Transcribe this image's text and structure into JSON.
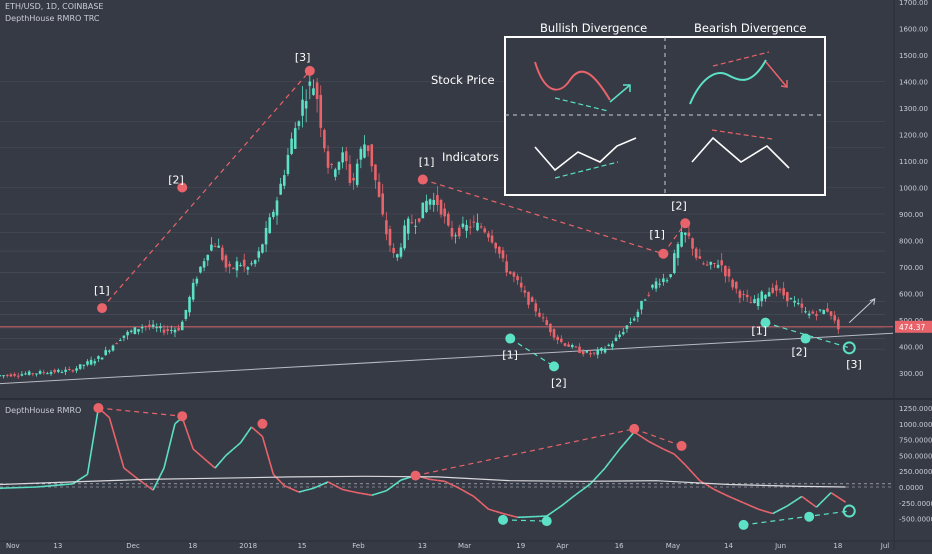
{
  "header": {
    "symbol_line": "ETH/USD, 1D, COINBASE",
    "indicator_line": "DepthHouse RMRO TRC",
    "lower_pane_title": "DepthHouse RMRO"
  },
  "colors": {
    "background": "#363a45",
    "bull": "#5ce0c6",
    "bear": "#e8636a",
    "grid": "#464b57",
    "text": "#c9ccd6",
    "price_line": "#e8636a",
    "white": "#ffffff"
  },
  "chart_data": [
    {
      "type": "candlestick",
      "title": "ETH/USD, 1D, COINBASE",
      "y_axis_ticks": [
        "1700.00",
        "1600.00",
        "1500.00",
        "1400.00",
        "1300.00",
        "1200.00",
        "1100.00",
        "1000.00",
        "900.00",
        "800.00",
        "700.00",
        "600.00",
        "500.00",
        "400.00",
        "300.00"
      ],
      "ylim": [
        250,
        1700
      ],
      "x_axis_ticks": [
        "Nov",
        "13",
        "Dec",
        "18",
        "2018",
        "15",
        "Feb",
        "13",
        "Mar",
        "19",
        "Apr",
        "16",
        "May",
        "14",
        "Jun",
        "18",
        "Jul"
      ],
      "last_price_label": "474.37",
      "last_price": 474.37,
      "price_path": [
        [
          0,
          290
        ],
        [
          10,
          300
        ],
        [
          20,
          310
        ],
        [
          28,
          360
        ],
        [
          34,
          440
        ],
        [
          40,
          480
        ],
        [
          46,
          460
        ],
        [
          50,
          470
        ],
        [
          54,
          650
        ],
        [
          58,
          780
        ],
        [
          60,
          790
        ],
        [
          63,
          680
        ],
        [
          66,
          720
        ],
        [
          68,
          690
        ],
        [
          71,
          730
        ],
        [
          74,
          850
        ],
        [
          77,
          980
        ],
        [
          80,
          1150
        ],
        [
          83,
          1300
        ],
        [
          85,
          1380
        ],
        [
          87,
          1390
        ],
        [
          89,
          1200
        ],
        [
          91,
          1050
        ],
        [
          93,
          1100
        ],
        [
          95,
          1120
        ],
        [
          97,
          1000
        ],
        [
          99,
          1120
        ],
        [
          101,
          1180
        ],
        [
          103,
          1060
        ],
        [
          106,
          850
        ],
        [
          109,
          720
        ],
        [
          112,
          860
        ],
        [
          115,
          880
        ],
        [
          118,
          960
        ],
        [
          121,
          940
        ],
        [
          124,
          820
        ],
        [
          127,
          840
        ],
        [
          130,
          860
        ],
        [
          133,
          850
        ],
        [
          136,
          800
        ],
        [
          139,
          700
        ],
        [
          142,
          650
        ],
        [
          145,
          580
        ],
        [
          148,
          530
        ],
        [
          151,
          470
        ],
        [
          154,
          420
        ],
        [
          157,
          400
        ],
        [
          160,
          380
        ],
        [
          163,
          370
        ],
        [
          166,
          390
        ],
        [
          169,
          420
        ],
        [
          172,
          470
        ],
        [
          175,
          520
        ],
        [
          178,
          600
        ],
        [
          181,
          650
        ],
        [
          184,
          660
        ],
        [
          186,
          760
        ],
        [
          188,
          830
        ],
        [
          190,
          800
        ],
        [
          192,
          720
        ],
        [
          195,
          700
        ],
        [
          198,
          720
        ],
        [
          201,
          640
        ],
        [
          204,
          590
        ],
        [
          207,
          560
        ],
        [
          210,
          600
        ],
        [
          213,
          620
        ],
        [
          216,
          590
        ],
        [
          219,
          560
        ],
        [
          222,
          520
        ],
        [
          225,
          530
        ],
        [
          228,
          540
        ],
        [
          230,
          474
        ]
      ],
      "annotations": [
        {
          "label": "[1]",
          "type": "high",
          "day": 28,
          "price": 545
        },
        {
          "label": "[2]",
          "type": "high",
          "day": 50,
          "price": 1000
        },
        {
          "label": "[3]",
          "type": "high",
          "day": 85,
          "price": 1440
        },
        {
          "label": "[1]",
          "type": "high",
          "day": 116,
          "price": 1030
        },
        {
          "label": "[1]",
          "type": "high",
          "day": 182,
          "price": 750
        },
        {
          "label": "[2]",
          "type": "high",
          "day": 188,
          "price": 865
        },
        {
          "label": "[1]",
          "type": "low",
          "day": 140,
          "price": 430
        },
        {
          "label": "[2]",
          "type": "low",
          "day": 152,
          "price": 325
        },
        {
          "label": "[1]",
          "type": "low",
          "day": 210,
          "price": 490
        },
        {
          "label": "[2]",
          "type": "low",
          "day": 221,
          "price": 430
        },
        {
          "label": "[3]",
          "type": "low",
          "day": 233,
          "price": 395
        }
      ],
      "inset": {
        "columns": [
          "Bullish Divergence",
          "Bearish Divergence"
        ],
        "rows": [
          "Stock Price",
          "Indicators"
        ]
      }
    },
    {
      "type": "line",
      "title": "DepthHouse RMRO",
      "y_axis_ticks": [
        "1250.0000",
        "1000.0000",
        "750.0000",
        "500.0000",
        "250.0000",
        "0.0000",
        "-250.0000",
        "-500.0000"
      ],
      "ylim": [
        -650,
        1300
      ],
      "series": [
        {
          "values_path": [
            [
              0,
              -20
            ],
            [
              10,
              0
            ],
            [
              20,
              50
            ],
            [
              24,
              200
            ],
            [
              27,
              1250
            ],
            [
              30,
              1100
            ],
            [
              34,
              300
            ],
            [
              38,
              120
            ],
            [
              42,
              -50
            ],
            [
              45,
              300
            ],
            [
              48,
              1000
            ],
            [
              50,
              1100
            ],
            [
              53,
              600
            ],
            [
              56,
              450
            ],
            [
              59,
              300
            ],
            [
              62,
              500
            ],
            [
              66,
              700
            ],
            [
              69,
              950
            ],
            [
              72,
              800
            ],
            [
              75,
              200
            ],
            [
              78,
              20
            ],
            [
              82,
              -80
            ],
            [
              86,
              -20
            ],
            [
              90,
              80
            ],
            [
              94,
              -40
            ],
            [
              98,
              -90
            ],
            [
              102,
              -130
            ],
            [
              106,
              -60
            ],
            [
              110,
              110
            ],
            [
              114,
              180
            ],
            [
              118,
              120
            ],
            [
              122,
              90
            ],
            [
              126,
              -20
            ],
            [
              130,
              -150
            ],
            [
              134,
              -350
            ],
            [
              138,
              -420
            ],
            [
              142,
              -480
            ],
            [
              146,
              -470
            ],
            [
              150,
              -460
            ],
            [
              154,
              -300
            ],
            [
              158,
              -120
            ],
            [
              162,
              50
            ],
            [
              166,
              300
            ],
            [
              170,
              600
            ],
            [
              174,
              870
            ],
            [
              178,
              720
            ],
            [
              182,
              600
            ],
            [
              185,
              520
            ],
            [
              188,
              350
            ],
            [
              192,
              100
            ],
            [
              196,
              -40
            ],
            [
              200,
              -150
            ],
            [
              204,
              -250
            ],
            [
              208,
              -350
            ],
            [
              212,
              -420
            ],
            [
              216,
              -300
            ],
            [
              220,
              -150
            ],
            [
              224,
              -320
            ],
            [
              228,
              -90
            ],
            [
              232,
              -240
            ]
          ]
        },
        {
          "values_path": [
            [
              0,
              40
            ],
            [
              20,
              80
            ],
            [
              40,
              120
            ],
            [
              60,
              140
            ],
            [
              80,
              160
            ],
            [
              100,
              170
            ],
            [
              120,
              160
            ],
            [
              140,
              100
            ],
            [
              160,
              90
            ],
            [
              180,
              100
            ],
            [
              200,
              40
            ],
            [
              220,
              10
            ],
            [
              232,
              0
            ]
          ]
        }
      ],
      "annotations": [
        {
          "type": "high",
          "day": 27,
          "value": 1250
        },
        {
          "type": "high",
          "day": 50,
          "value": 1120
        },
        {
          "type": "high",
          "day": 72,
          "value": 1000
        },
        {
          "type": "high",
          "day": 114,
          "value": 180
        },
        {
          "type": "high",
          "day": 174,
          "value": 920
        },
        {
          "type": "high",
          "day": 187,
          "value": 650
        },
        {
          "type": "low",
          "day": 138,
          "value": -520
        },
        {
          "type": "low",
          "day": 150,
          "value": -540
        },
        {
          "type": "low",
          "day": 204,
          "value": -600
        },
        {
          "type": "low",
          "day": 222,
          "value": -470
        },
        {
          "type": "low",
          "day": 233,
          "value": -380
        }
      ]
    }
  ]
}
